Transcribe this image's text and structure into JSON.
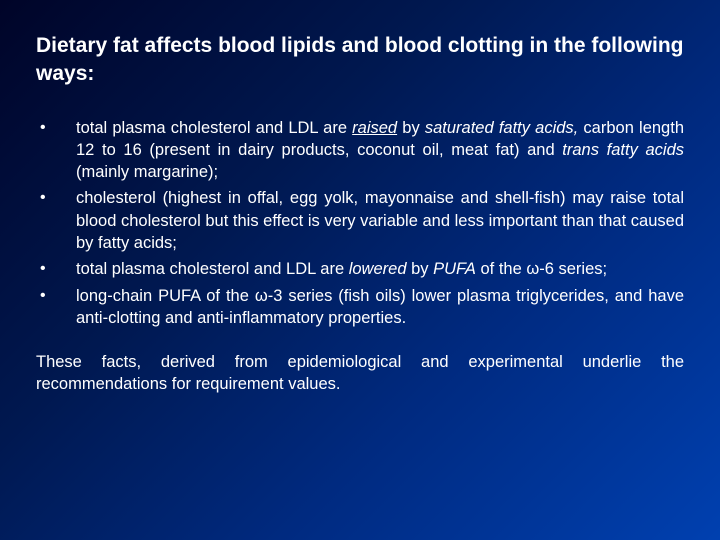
{
  "background_gradient": [
    "#000428",
    "#001850",
    "#002a80",
    "#0040b0"
  ],
  "text_color": "#ffffff",
  "font_family": "Arial",
  "title": {
    "text": "Dietary fat affects blood lipids and blood clotting in the following ways:",
    "fontsize": 21,
    "weight": "bold"
  },
  "bullets": [
    {
      "segments": [
        {
          "t": "total plasma cholesterol and LDL are "
        },
        {
          "t": "raised",
          "italic": true,
          "underline": true
        },
        {
          "t": " by "
        },
        {
          "t": "saturated fatty acids,",
          "italic": true
        },
        {
          "t": " carbon length 12 to 16 (present in dairy products, coconut oil, meat fat) and "
        },
        {
          "t": "trans fatty acids",
          "italic": true
        },
        {
          "t": " (mainly margarine);"
        }
      ]
    },
    {
      "segments": [
        {
          "t": "cholesterol (highest in offal, egg yolk, mayonnaise and shell-fish) may raise total blood cholesterol but this effect is very variable and less important than that caused by fatty acids;"
        }
      ]
    },
    {
      "segments": [
        {
          "t": "total plasma cholesterol and LDL are "
        },
        {
          "t": "lowered",
          "italic": true
        },
        {
          "t": " by "
        },
        {
          "t": "PUFA",
          "italic": true
        },
        {
          "t": " of the ω-6 series;"
        }
      ]
    },
    {
      "segments": [
        {
          "t": "long-chain PUFA of the ω-3 series (fish oils) lower plasma triglycerides, and have anti-clotting and anti-inflammatory properties."
        }
      ]
    }
  ],
  "bullet_fontsize": 16.5,
  "footer": {
    "text": "These facts, derived from epidemiological and experimental underlie the recommendations for requirement values.",
    "fontsize": 16.5
  }
}
